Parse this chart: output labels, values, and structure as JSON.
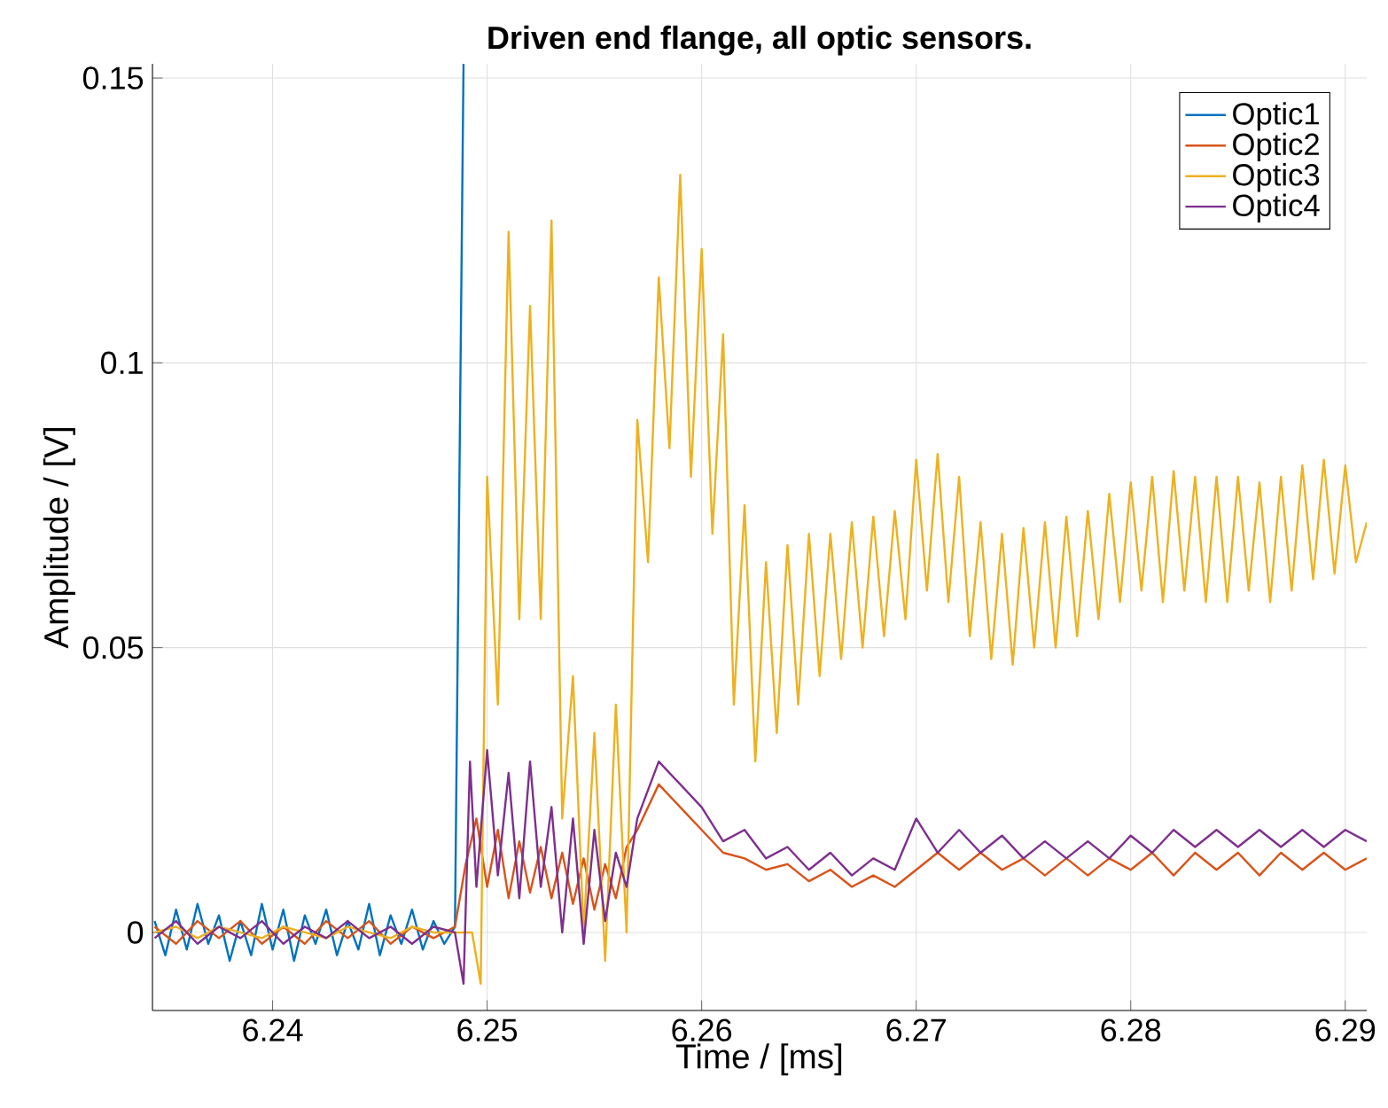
{
  "chart_data": {
    "type": "line",
    "title": "Driven end flange, all optic sensors.",
    "xlabel": "Time / [ms]",
    "ylabel": "Amplitude / [V]",
    "xlim": [
      6.2344,
      6.291
    ],
    "ylim": [
      -0.0137,
      0.1525
    ],
    "xticks": [
      6.24,
      6.25,
      6.26,
      6.27,
      6.28,
      6.29
    ],
    "yticks": [
      0,
      0.05,
      0.1,
      0.15
    ],
    "grid": true,
    "legend": "top right",
    "series": [
      {
        "name": "Optic1",
        "color": "#0072bd",
        "x": [
          6.2345,
          6.235,
          6.2355,
          6.236,
          6.2365,
          6.237,
          6.2375,
          6.238,
          6.2385,
          6.239,
          6.2395,
          6.24,
          6.2405,
          6.241,
          6.2415,
          6.242,
          6.2425,
          6.243,
          6.2435,
          6.244,
          6.2445,
          6.245,
          6.2455,
          6.246,
          6.2465,
          6.247,
          6.2475,
          6.248,
          6.2485,
          6.2489
        ],
        "values": [
          0.002,
          -0.004,
          0.004,
          -0.003,
          0.005,
          -0.002,
          0.003,
          -0.005,
          0.002,
          -0.004,
          0.005,
          -0.003,
          0.004,
          -0.005,
          0.003,
          -0.002,
          0.004,
          -0.004,
          0.002,
          -0.003,
          0.005,
          -0.004,
          0.003,
          -0.002,
          0.004,
          -0.003,
          0.002,
          -0.002,
          0.001,
          0.1525
        ]
      },
      {
        "name": "Optic2",
        "color": "#d95319",
        "x": [
          6.2345,
          6.2355,
          6.2365,
          6.2375,
          6.2385,
          6.2395,
          6.2405,
          6.2415,
          6.2425,
          6.2435,
          6.2445,
          6.2455,
          6.2465,
          6.2475,
          6.2485,
          6.249,
          6.2495,
          6.25,
          6.2505,
          6.251,
          6.2515,
          6.252,
          6.2525,
          6.253,
          6.2535,
          6.254,
          6.2545,
          6.255,
          6.2555,
          6.256,
          6.2565,
          6.257,
          6.258,
          6.259,
          6.26,
          6.261,
          6.262,
          6.263,
          6.264,
          6.265,
          6.266,
          6.267,
          6.268,
          6.269,
          6.27,
          6.271,
          6.272,
          6.273,
          6.274,
          6.275,
          6.276,
          6.277,
          6.278,
          6.279,
          6.28,
          6.281,
          6.282,
          6.283,
          6.284,
          6.285,
          6.286,
          6.287,
          6.288,
          6.289,
          6.29,
          6.291
        ],
        "values": [
          0.001,
          -0.002,
          0.002,
          -0.001,
          0.002,
          -0.002,
          0.001,
          -0.002,
          0.002,
          -0.001,
          0.002,
          -0.002,
          0.001,
          -0.001,
          0.001,
          0.012,
          0.02,
          0.008,
          0.018,
          0.006,
          0.016,
          0.007,
          0.015,
          0.006,
          0.014,
          0.005,
          0.013,
          0.004,
          0.012,
          0.006,
          0.015,
          0.018,
          0.026,
          0.022,
          0.018,
          0.014,
          0.013,
          0.011,
          0.012,
          0.009,
          0.011,
          0.008,
          0.01,
          0.008,
          0.011,
          0.014,
          0.011,
          0.014,
          0.011,
          0.013,
          0.01,
          0.013,
          0.01,
          0.013,
          0.011,
          0.014,
          0.01,
          0.014,
          0.011,
          0.014,
          0.01,
          0.014,
          0.011,
          0.014,
          0.011,
          0.013
        ]
      },
      {
        "name": "Optic3",
        "color": "#edb120",
        "x": [
          6.2345,
          6.2355,
          6.2365,
          6.2375,
          6.2385,
          6.2395,
          6.2405,
          6.2415,
          6.2425,
          6.2435,
          6.2445,
          6.2455,
          6.2465,
          6.2475,
          6.2485,
          6.2493,
          6.2497,
          6.25,
          6.2505,
          6.251,
          6.2515,
          6.252,
          6.2525,
          6.253,
          6.2535,
          6.254,
          6.2545,
          6.255,
          6.2555,
          6.256,
          6.2565,
          6.257,
          6.2575,
          6.258,
          6.2585,
          6.259,
          6.2595,
          6.26,
          6.2605,
          6.261,
          6.2615,
          6.262,
          6.2625,
          6.263,
          6.2635,
          6.264,
          6.2645,
          6.265,
          6.2655,
          6.266,
          6.2665,
          6.267,
          6.2675,
          6.268,
          6.2685,
          6.269,
          6.2695,
          6.27,
          6.2705,
          6.271,
          6.2715,
          6.272,
          6.2725,
          6.273,
          6.2735,
          6.274,
          6.2745,
          6.275,
          6.2755,
          6.276,
          6.2765,
          6.277,
          6.2775,
          6.278,
          6.2785,
          6.279,
          6.2795,
          6.28,
          6.2805,
          6.281,
          6.2815,
          6.282,
          6.2825,
          6.283,
          6.2835,
          6.284,
          6.2845,
          6.285,
          6.2855,
          6.286,
          6.2865,
          6.287,
          6.2875,
          6.288,
          6.2885,
          6.289,
          6.2895,
          6.29,
          6.2905,
          6.291
        ],
        "values": [
          0.0,
          0.001,
          -0.001,
          0.001,
          0.0,
          -0.001,
          0.001,
          0.0,
          -0.001,
          0.001,
          0.0,
          -0.001,
          0.001,
          0.0,
          0.0,
          0.0,
          -0.009,
          0.08,
          0.04,
          0.123,
          0.055,
          0.11,
          0.055,
          0.125,
          0.02,
          0.045,
          0.0,
          0.035,
          -0.005,
          0.04,
          0.0,
          0.09,
          0.065,
          0.115,
          0.085,
          0.133,
          0.08,
          0.12,
          0.07,
          0.105,
          0.04,
          0.075,
          0.03,
          0.065,
          0.035,
          0.068,
          0.04,
          0.07,
          0.045,
          0.07,
          0.048,
          0.072,
          0.05,
          0.073,
          0.052,
          0.074,
          0.055,
          0.083,
          0.06,
          0.084,
          0.058,
          0.08,
          0.052,
          0.072,
          0.048,
          0.07,
          0.047,
          0.071,
          0.05,
          0.072,
          0.05,
          0.073,
          0.052,
          0.074,
          0.055,
          0.077,
          0.058,
          0.079,
          0.06,
          0.08,
          0.058,
          0.081,
          0.06,
          0.08,
          0.058,
          0.08,
          0.058,
          0.08,
          0.06,
          0.079,
          0.058,
          0.08,
          0.06,
          0.082,
          0.062,
          0.083,
          0.063,
          0.082,
          0.065,
          0.072
        ]
      },
      {
        "name": "Optic4",
        "color": "#7e2f8e",
        "x": [
          6.2345,
          6.2355,
          6.2365,
          6.2375,
          6.2385,
          6.2395,
          6.2405,
          6.2415,
          6.2425,
          6.2435,
          6.2445,
          6.2455,
          6.2465,
          6.2475,
          6.2485,
          6.2489,
          6.2492,
          6.2495,
          6.25,
          6.2505,
          6.251,
          6.2515,
          6.252,
          6.2525,
          6.253,
          6.2535,
          6.254,
          6.2545,
          6.255,
          6.2555,
          6.256,
          6.2565,
          6.257,
          6.258,
          6.259,
          6.26,
          6.261,
          6.262,
          6.263,
          6.264,
          6.265,
          6.266,
          6.267,
          6.268,
          6.269,
          6.27,
          6.271,
          6.272,
          6.273,
          6.274,
          6.275,
          6.276,
          6.277,
          6.278,
          6.279,
          6.28,
          6.281,
          6.282,
          6.283,
          6.284,
          6.285,
          6.286,
          6.287,
          6.288,
          6.289,
          6.29,
          6.291
        ],
        "values": [
          -0.001,
          0.002,
          -0.002,
          0.001,
          -0.001,
          0.002,
          -0.002,
          0.001,
          -0.001,
          0.002,
          -0.001,
          0.001,
          -0.002,
          0.001,
          0.0,
          -0.009,
          0.03,
          0.008,
          0.032,
          0.01,
          0.028,
          0.006,
          0.03,
          0.008,
          0.022,
          0.0,
          0.02,
          -0.002,
          0.018,
          0.002,
          0.014,
          0.008,
          0.02,
          0.03,
          0.026,
          0.022,
          0.016,
          0.018,
          0.013,
          0.015,
          0.011,
          0.014,
          0.01,
          0.013,
          0.011,
          0.02,
          0.014,
          0.018,
          0.014,
          0.017,
          0.013,
          0.016,
          0.013,
          0.016,
          0.013,
          0.017,
          0.014,
          0.018,
          0.015,
          0.018,
          0.015,
          0.018,
          0.015,
          0.018,
          0.015,
          0.018,
          0.016
        ]
      }
    ]
  }
}
